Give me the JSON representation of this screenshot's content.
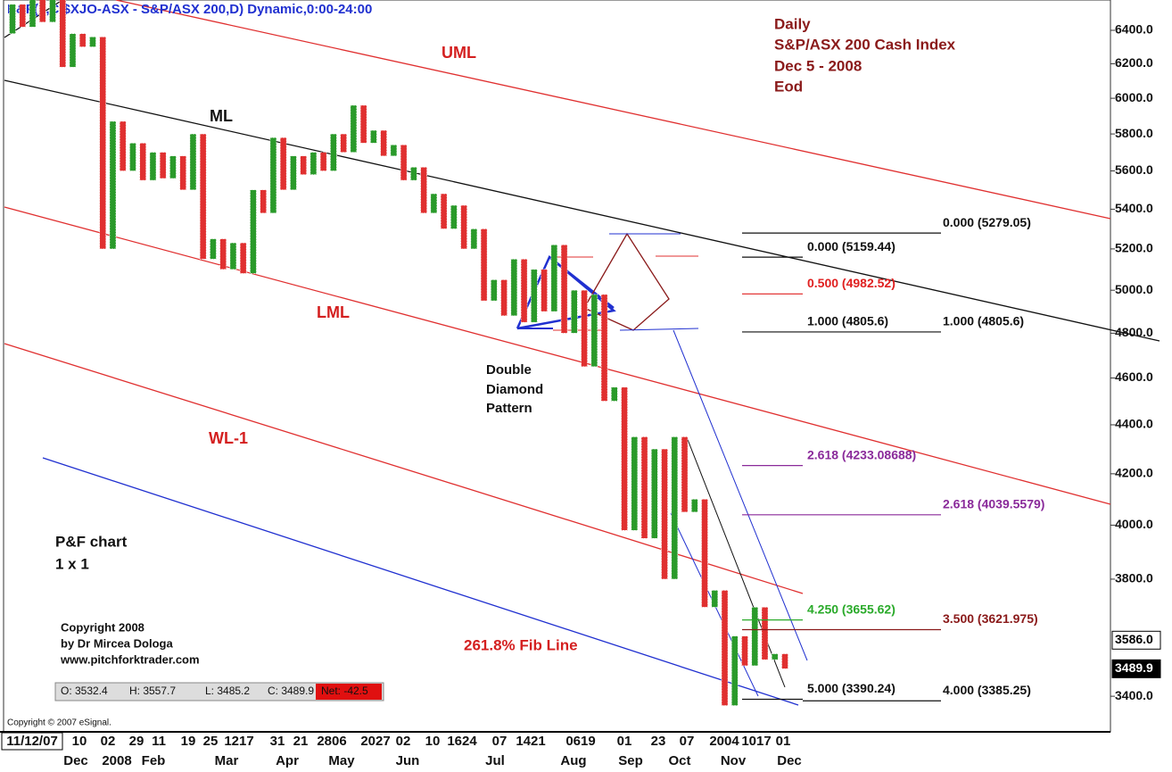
{
  "chart_data": {
    "type": "pnf",
    "title": "P&F(1,C,$XJO-ASX - S&P/ASX 200,D) Dynamic,0:00-24:00",
    "info": [
      "Daily",
      "S&P/ASX 200 Cash Index",
      "Dec 5 - 2008",
      "Eod"
    ],
    "chart_kind": [
      "P&F chart",
      "1 x 1"
    ],
    "copyright": [
      "Copyright 2008",
      "by Dr Mircea Dologa",
      "www.pitchforktrader.com"
    ],
    "esignal": "Copyright © 2007 eSignal.",
    "annotations": [
      {
        "text": "UML",
        "color": "#d42020"
      },
      {
        "text": "ML",
        "color": "#111111"
      },
      {
        "text": "LML",
        "color": "#d42020"
      },
      {
        "text": "WL-1",
        "color": "#d42020"
      },
      {
        "text": "261.8% Fib Line",
        "color": "#d42020"
      },
      {
        "text": "Double",
        "color": "#111111"
      },
      {
        "text": "Diamond",
        "color": "#111111"
      },
      {
        "text": "Pattern",
        "color": "#111111"
      }
    ],
    "fib_levels": [
      {
        "value": 5279.05,
        "label": "0.000 (5279.05)",
        "color": "#111111"
      },
      {
        "value": 5159.44,
        "label": "0.000 (5159.44)",
        "color": "#111111"
      },
      {
        "value": 4982.52,
        "label": "0.500 (4982.52)",
        "color": "#e02020"
      },
      {
        "value": 4805.6,
        "label": "1.000 (4805.6)",
        "color": "#111111"
      },
      {
        "value": 4805.6,
        "label": "1.000 (4805.6)",
        "color": "#111111"
      },
      {
        "value": 4233.08688,
        "label": "2.618 (4233.08688)",
        "color": "#8a2a9a"
      },
      {
        "value": 4039.5579,
        "label": "2.618 (4039.5579)",
        "color": "#8a2a9a"
      },
      {
        "value": 3655.62,
        "label": "4.250 (3655.62)",
        "color": "#2aaa2a"
      },
      {
        "value": 3621.975,
        "label": "3.500 (3621.975)",
        "color": "#8a1a1a"
      },
      {
        "value": 3390.24,
        "label": "5.000 (3390.24)",
        "color": "#111111"
      },
      {
        "value": 3385.25,
        "label": "4.000 (3385.25)",
        "color": "#111111"
      }
    ],
    "ohlc": [
      "O: 3532.4",
      "H: 3557.7",
      "L: 3485.2",
      "C: 3489.9"
    ],
    "net": "Net: -42.5",
    "x_days": [
      "11/12/07",
      "10",
      "02",
      "29",
      "11",
      "19",
      "25",
      "1217",
      "31",
      "21",
      "2806",
      "2027",
      "02",
      "10",
      "1624",
      "07",
      "1421",
      "0619",
      "01",
      "23",
      "07",
      "2004",
      "1017",
      "01"
    ],
    "x_months": [
      "Dec",
      "2008",
      "Feb",
      "Mar",
      "Apr",
      "May",
      "Jun",
      "Jul",
      "Aug",
      "Sep",
      "Oct",
      "Nov",
      "Dec"
    ],
    "up_color": "#2a9a2a",
    "down_color": "#e03030",
    "log_scale": true,
    "ylim": [
      3287,
      6587
    ],
    "yticks": [
      {
        "value": 3400,
        "label": "3400.0"
      },
      {
        "value": 3800,
        "label": "3800.0"
      },
      {
        "value": 4000,
        "label": "4000.0"
      },
      {
        "value": 4200,
        "label": "4200.0"
      },
      {
        "value": 4400,
        "label": "4400.0"
      },
      {
        "value": 4600,
        "label": "4600.0"
      },
      {
        "value": 4800,
        "label": "4800.0"
      },
      {
        "value": 5000,
        "label": "5000.0"
      },
      {
        "value": 5200,
        "label": "5200.0"
      },
      {
        "value": 5400,
        "label": "5400.0"
      },
      {
        "value": 5600,
        "label": "5600.0"
      },
      {
        "value": 5800,
        "label": "5800.0"
      },
      {
        "value": 6000,
        "label": "6000.0"
      },
      {
        "value": 6200,
        "label": "6200.0"
      },
      {
        "value": 6400,
        "label": "6400.0"
      }
    ],
    "price_markers": [
      {
        "value": 3586,
        "label": "3586.0"
      },
      {
        "value": 3489.9,
        "label": "3489.9"
      }
    ],
    "columns": [
      [
        6380,
        6560
      ],
      [
        6560,
        6420
      ],
      [
        6420,
        6600
      ],
      [
        6600,
        6450
      ],
      [
        6450,
        6620
      ],
      [
        6620,
        6180
      ],
      [
        6180,
        6380
      ],
      [
        6380,
        6300
      ],
      [
        6300,
        6360
      ],
      [
        6360,
        5200
      ],
      [
        5200,
        5870
      ],
      [
        5870,
        5600
      ],
      [
        5600,
        5750
      ],
      [
        5750,
        5550
      ],
      [
        5550,
        5700
      ],
      [
        5700,
        5560
      ],
      [
        5560,
        5680
      ],
      [
        5680,
        5500
      ],
      [
        5500,
        5800
      ],
      [
        5800,
        5150
      ],
      [
        5150,
        5250
      ],
      [
        5250,
        5100
      ],
      [
        5100,
        5230
      ],
      [
        5230,
        5080
      ],
      [
        5080,
        5500
      ],
      [
        5500,
        5380
      ],
      [
        5380,
        5780
      ],
      [
        5780,
        5500
      ],
      [
        5500,
        5680
      ],
      [
        5680,
        5580
      ],
      [
        5580,
        5700
      ],
      [
        5700,
        5600
      ],
      [
        5600,
        5800
      ],
      [
        5800,
        5700
      ],
      [
        5700,
        5960
      ],
      [
        5960,
        5750
      ],
      [
        5750,
        5820
      ],
      [
        5820,
        5680
      ],
      [
        5680,
        5740
      ],
      [
        5740,
        5550
      ],
      [
        5550,
        5620
      ],
      [
        5620,
        5380
      ],
      [
        5380,
        5480
      ],
      [
        5480,
        5300
      ],
      [
        5300,
        5420
      ],
      [
        5420,
        5200
      ],
      [
        5200,
        5300
      ],
      [
        5300,
        4950
      ],
      [
        4950,
        5050
      ],
      [
        5050,
        4880
      ],
      [
        4880,
        5150
      ],
      [
        5150,
        4850
      ],
      [
        4850,
        5100
      ],
      [
        5100,
        4900
      ],
      [
        4900,
        5220
      ],
      [
        5220,
        4800
      ],
      [
        4800,
        5000
      ],
      [
        5000,
        4650
      ],
      [
        4650,
        4980
      ],
      [
        4980,
        4500
      ],
      [
        4500,
        4560
      ],
      [
        4560,
        3980
      ],
      [
        3980,
        4350
      ],
      [
        4350,
        3950
      ],
      [
        3950,
        4300
      ],
      [
        4300,
        3800
      ],
      [
        3800,
        4350
      ],
      [
        4350,
        4050
      ],
      [
        4050,
        4100
      ],
      [
        4100,
        3700
      ],
      [
        3700,
        3760
      ],
      [
        3760,
        3370
      ],
      [
        3370,
        3600
      ],
      [
        3600,
        3500
      ],
      [
        3500,
        3700
      ],
      [
        3700,
        3520
      ],
      [
        3520,
        3540
      ],
      [
        3540,
        3490
      ]
    ]
  }
}
